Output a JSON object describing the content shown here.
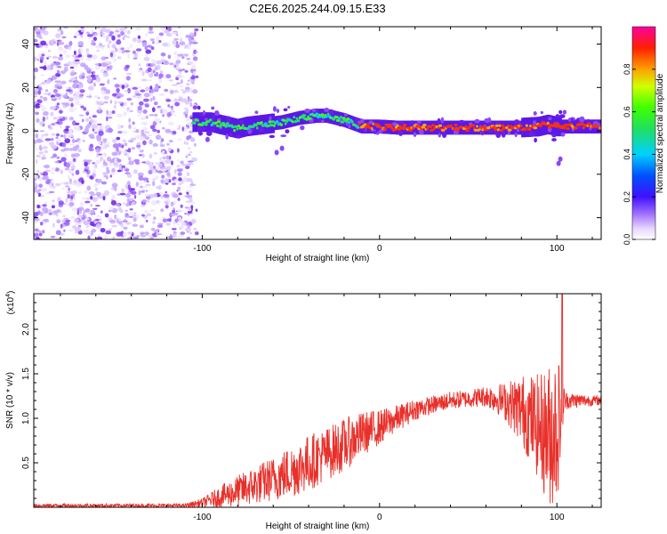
{
  "title": "C2E6.2025.244.09.15.E33",
  "chart_data": [
    {
      "type": "heatmap",
      "title": "C2E6.2025.244.09.15.E33",
      "xlabel": "Height of straight line (km)",
      "ylabel": "Frequency (Hz)",
      "xlim": [
        -195,
        125
      ],
      "ylim": [
        -50,
        48
      ],
      "x_ticks": [
        -100,
        0,
        100
      ],
      "y_ticks": [
        -40,
        -20,
        0,
        20,
        40
      ],
      "x_tick_labels": [
        "-100",
        "0",
        "100"
      ],
      "y_tick_labels": [
        "-40",
        "-20",
        "0",
        "20",
        "40"
      ],
      "noise_region_x": [
        -195,
        -103
      ],
      "ridge": {
        "x": [
          -105,
          -95,
          -85,
          -80,
          -75,
          -65,
          -55,
          -45,
          -35,
          -30,
          -20,
          -10,
          0,
          10,
          30,
          60,
          80,
          90,
          95,
          100,
          110,
          125
        ],
        "freq": [
          4,
          4,
          2,
          1,
          2,
          3,
          4,
          6,
          7,
          7,
          5,
          2,
          2,
          1.5,
          1.5,
          1.5,
          1.5,
          2,
          3,
          2,
          2,
          2
        ]
      },
      "colorbar": {
        "label": "Normalized spectral amplitude",
        "range": [
          0,
          1
        ],
        "ticks": [
          0.0,
          0.2,
          0.4,
          0.6,
          0.8
        ],
        "tick_labels": [
          "0.0",
          "0.2",
          "0.4",
          "0.6",
          "0.8"
        ]
      }
    },
    {
      "type": "line",
      "xlabel": "Height of straight line (km)",
      "ylabel": "SNR (10 * v/v)",
      "exponent_label": "(x10",
      "exponent_power": "4",
      "exponent_close": ")",
      "xlim": [
        -195,
        125
      ],
      "ylim": [
        0,
        2.4
      ],
      "x_ticks": [
        -100,
        0,
        100
      ],
      "y_ticks": [
        0.5,
        1.0,
        1.5,
        2.0
      ],
      "x_tick_labels": [
        "-100",
        "0",
        "100"
      ],
      "y_tick_labels": [
        "0.5",
        "1.0",
        "1.5",
        "2.0"
      ],
      "line_color": "#e8302a",
      "envelope": {
        "x": [
          -195,
          -110,
          -100,
          -90,
          -80,
          -70,
          -60,
          -50,
          -40,
          -30,
          -20,
          -10,
          0,
          10,
          20,
          30,
          40,
          50,
          60,
          70,
          80,
          90,
          95,
          100,
          105,
          125
        ],
        "mean": [
          0.02,
          0.02,
          0.05,
          0.12,
          0.18,
          0.25,
          0.32,
          0.4,
          0.5,
          0.6,
          0.7,
          0.82,
          0.9,
          1.0,
          1.1,
          1.15,
          1.2,
          1.22,
          1.25,
          1.2,
          1.1,
          0.9,
          0.8,
          0.9,
          1.2,
          1.2
        ],
        "spread": [
          0.02,
          0.02,
          0.05,
          0.12,
          0.18,
          0.22,
          0.25,
          0.3,
          0.32,
          0.3,
          0.3,
          0.25,
          0.2,
          0.15,
          0.12,
          0.1,
          0.1,
          0.1,
          0.12,
          0.2,
          0.4,
          0.6,
          0.8,
          0.9,
          0.1,
          0.05
        ]
      },
      "peak": {
        "x": 103,
        "value": 2.4
      }
    }
  ]
}
